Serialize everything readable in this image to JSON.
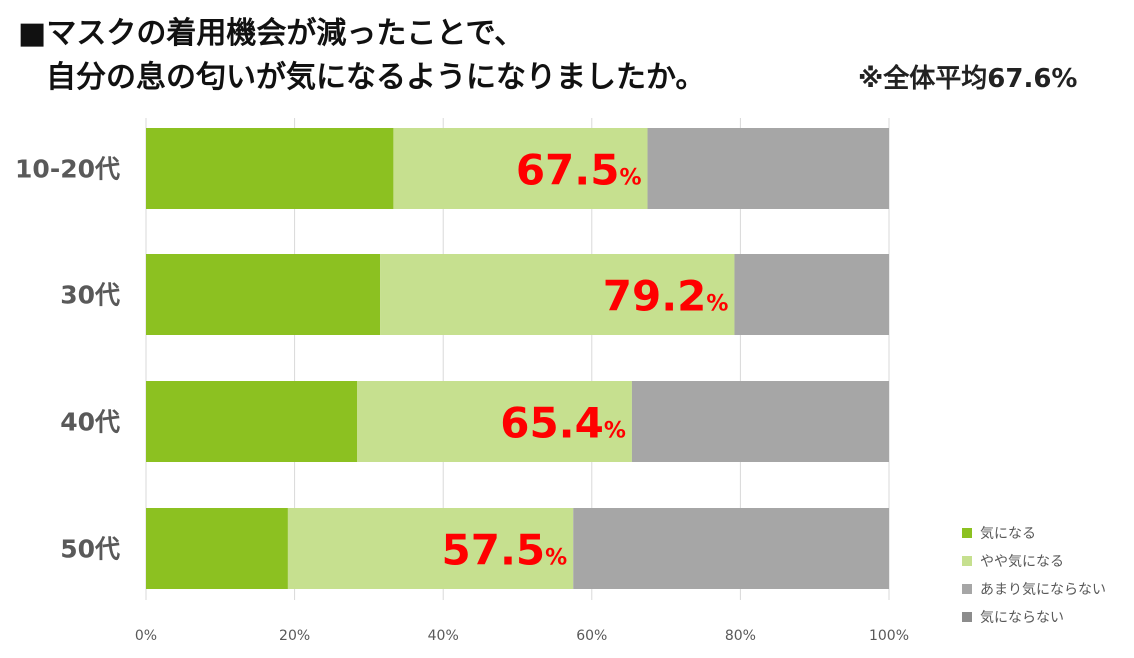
{
  "title": {
    "line1": "■マスクの着用機会が減ったことで、",
    "line2": "自分の息の匂いが気になるようになりましたか。"
  },
  "note": "※全体平均67.6%",
  "colors": {
    "series": [
      "#8cc121",
      "#c6e08f",
      "#a6a6a6",
      "#a6a6a6"
    ],
    "legend": [
      "#8cc121",
      "#c6e08f",
      "#a6a6a6",
      "#8c8c8c"
    ],
    "highlight": "#ff0000",
    "grid": "#d9d9d9",
    "axis_text": "#595959"
  },
  "chart_data": {
    "type": "bar",
    "orientation": "horizontal",
    "stacked": true,
    "categories": [
      "10-20代",
      "30代",
      "40代",
      "50代"
    ],
    "series": [
      {
        "name": "気になる",
        "values": [
          33.3,
          31.5,
          28.4,
          19.1
        ]
      },
      {
        "name": "やや気になる",
        "values": [
          34.2,
          47.7,
          37.0,
          38.4
        ]
      },
      {
        "name": "あまり気にならない",
        "values": [
          32.5,
          20.8,
          34.6,
          42.5
        ]
      },
      {
        "name": "気にならない",
        "values": [
          0,
          0,
          0,
          0
        ]
      }
    ],
    "annotations": [
      {
        "number": "67.5",
        "unit": "%"
      },
      {
        "number": "79.2",
        "unit": "%"
      },
      {
        "number": "65.4",
        "unit": "%"
      },
      {
        "number": "57.5",
        "unit": "%"
      }
    ],
    "x_ticks": [
      "0%",
      "20%",
      "40%",
      "60%",
      "80%",
      "100%"
    ],
    "xlim": [
      0,
      100
    ],
    "grid": true,
    "legend_position": "bottom-right"
  }
}
